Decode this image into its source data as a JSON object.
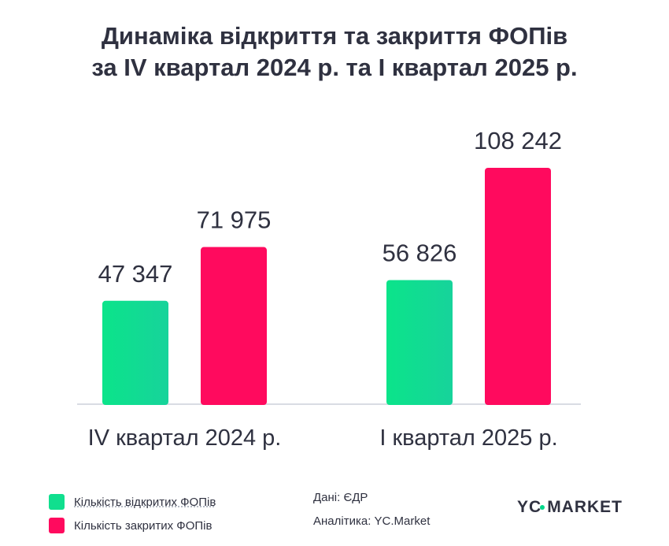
{
  "title_line1": "Динаміка відкриття та закриття ФОПів",
  "title_line2": "за IV квартал 2024 р. та I квартал 2025 р.",
  "chart_data": {
    "type": "bar",
    "categories": [
      "IV квартал 2024 р.",
      "I квартал 2025 р."
    ],
    "series": [
      {
        "name": "Кількість відкритих ФОПів",
        "values": [
          47347,
          56826
        ],
        "labels": [
          "47 347",
          "56 826"
        ],
        "color": "#10df8e"
      },
      {
        "name": "Кількість закритих ФОПів",
        "values": [
          71975,
          108242
        ],
        "labels": [
          "71 975",
          "108 242"
        ],
        "color": "#ff0a5e"
      }
    ],
    "ylim": [
      0,
      120000
    ],
    "grid": false,
    "legend_position": "bottom-left"
  },
  "legend": {
    "opened": "Кількість відкритих ФОПів",
    "closed": "Кількість закритих ФОПів"
  },
  "source": {
    "data": "Дані: ЄДР",
    "analytics": "Аналітика: YC.Market"
  },
  "logo": {
    "left": "YC",
    "right": "MARKET"
  }
}
